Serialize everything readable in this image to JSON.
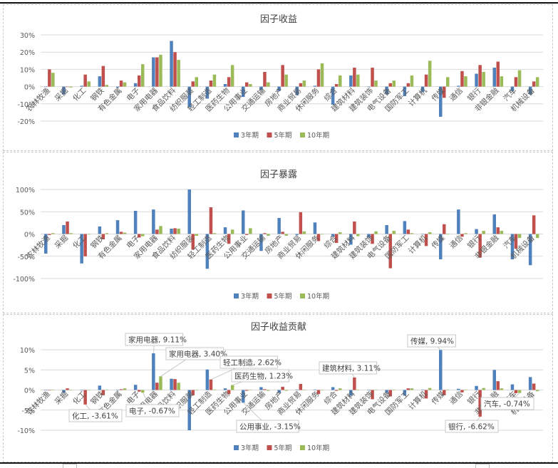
{
  "colors": {
    "s3": "#4F81BD",
    "s5": "#C0504D",
    "s10": "#9BBB59",
    "grid": "#D9D9D9",
    "text": "#595959"
  },
  "legend": [
    "3年期",
    "5年期",
    "10年期"
  ],
  "chart_data": [
    {
      "type": "bar",
      "title": "因子收益",
      "xlabel": "",
      "ylabel": "",
      "ylim": [
        -20,
        30
      ],
      "yticks": [
        "30%",
        "20%",
        "10%",
        "0%",
        "-10%",
        "-20%"
      ],
      "grid": true,
      "legend_position": "bottom",
      "categories": [
        "农林牧渔",
        "采掘",
        "化工",
        "钢铁",
        "有色金属",
        "电子",
        "家用电器",
        "食品饮料",
        "纺织服装",
        "轻工制造",
        "医药生物",
        "公用事业",
        "交通运输",
        "房地产",
        "商业贸易",
        "休闲服务",
        "综合",
        "建筑材料",
        "建筑装饰",
        "电气设备",
        "国防军工",
        "计算机",
        "传媒",
        "通信",
        "银行",
        "非银金融",
        "汽车",
        "机械设备"
      ],
      "series": [
        {
          "name": "3年期",
          "values": [
            0,
            -4.5,
            0.5,
            6,
            -0.5,
            2,
            17,
            26.5,
            -12,
            -7,
            1.5,
            -6,
            -2,
            -2.5,
            -5,
            0.5,
            -10.5,
            6.5,
            0,
            -4.5,
            -5.5,
            -3,
            -17.5,
            0.5,
            7.5,
            11,
            -2.5,
            -4.5
          ]
        },
        {
          "name": "5年期",
          "values": [
            10,
            0,
            7,
            12,
            3.5,
            6.5,
            17,
            20,
            3,
            3.5,
            5.5,
            2.5,
            8.5,
            12.5,
            2,
            10,
            1.5,
            11,
            11,
            2,
            2,
            7,
            -6.5,
            9,
            12.5,
            14.5,
            5.5,
            3
          ]
        },
        {
          "name": "10年期",
          "values": [
            8,
            -0.5,
            3,
            1,
            2.5,
            13,
            18.5,
            15.5,
            5.5,
            7,
            12.5,
            1.5,
            2.5,
            7,
            3.5,
            13.5,
            6.5,
            7,
            3.5,
            3.5,
            6.5,
            15,
            5.5,
            6,
            8.5,
            6,
            9.5,
            5.5
          ]
        }
      ]
    },
    {
      "type": "bar",
      "title": "因子暴露",
      "xlabel": "",
      "ylabel": "",
      "ylim": [
        -100,
        100
      ],
      "yticks": [
        "100%",
        "50%",
        "0%",
        "-50%",
        "-100%"
      ],
      "grid": true,
      "legend_position": "bottom",
      "categories": [
        "农林牧渔",
        "采掘",
        "化工",
        "钢铁",
        "有色金属",
        "电子",
        "家用电器",
        "食品饮料",
        "纺织服装",
        "轻工制造",
        "医药生物",
        "公用事业",
        "交通运输",
        "房地产",
        "商业贸易",
        "休闲服务",
        "综合",
        "建筑材料",
        "建筑装饰",
        "电气设备",
        "国防军工",
        "计算机",
        "传媒",
        "通信",
        "银行",
        "非银金融",
        "汽车",
        "机械设备"
      ],
      "series": [
        {
          "name": "3年期",
          "values": [
            -44,
            20,
            -66,
            17,
            31,
            52,
            55,
            12,
            100,
            -78,
            15,
            53,
            -38,
            36,
            -2,
            26,
            -5,
            -24,
            -8,
            20,
            29,
            -1,
            -57,
            55,
            11,
            44,
            -57,
            -70
          ]
        },
        {
          "name": "5年期",
          "values": [
            -2,
            28,
            -50,
            -12,
            5,
            -8,
            10,
            13,
            -35,
            60,
            -22,
            -2,
            2,
            5,
            49,
            -16,
            -20,
            28,
            -22,
            -77,
            10,
            -27,
            22,
            -6,
            -53,
            15,
            -33,
            42
          ]
        },
        {
          "name": "10年期",
          "values": [
            2,
            2,
            -1,
            2,
            3,
            -5,
            18,
            12,
            -4,
            2,
            10,
            13,
            -4,
            -4,
            6,
            -1,
            4,
            -5,
            6,
            7,
            2,
            4,
            -1,
            2,
            7,
            7,
            -9,
            -9
          ]
        }
      ]
    },
    {
      "type": "bar",
      "title": "因子收益贡献",
      "xlabel": "",
      "ylabel": "",
      "ylim": [
        -10,
        10
      ],
      "yticks": [
        "10%",
        "5%",
        "0%",
        "-5%",
        "-10%"
      ],
      "grid": true,
      "legend_position": "bottom",
      "categories": [
        "农林牧渔",
        "采掘",
        "化工",
        "钢铁",
        "有色金属",
        "电子",
        "家用电器",
        "食品饮料",
        "纺织服装",
        "轻工制造",
        "医药生物",
        "公用事业",
        "交通运输",
        "房地产",
        "商业贸易",
        "休闲服务",
        "综合",
        "建筑材料",
        "建筑装饰",
        "电气设备",
        "国防军工",
        "计算机",
        "传媒",
        "通信",
        "银行",
        "非银金融",
        "汽车",
        "机械设备"
      ],
      "series": [
        {
          "name": "3年期",
          "values": [
            0,
            -0.7,
            0,
            1.1,
            0,
            1.3,
            9.11,
            2.8,
            -10,
            5.1,
            0.4,
            -3.15,
            0.7,
            -0.7,
            0.1,
            0.1,
            0.7,
            -1.4,
            0,
            -0.7,
            -1.4,
            0.1,
            9.94,
            0.3,
            1.0,
            5.0,
            1.4,
            3.2
          ]
        },
        {
          "name": "5年期",
          "values": [
            0,
            0.4,
            -3.61,
            -1.3,
            0.2,
            -0.4,
            1.8,
            2.7,
            -1.3,
            2.62,
            -1.0,
            -0.2,
            0.2,
            0.8,
            1.5,
            -1.0,
            -0.2,
            3.11,
            -2.3,
            -1.6,
            0.4,
            -2.1,
            -1.3,
            -0.6,
            -6.62,
            2.2,
            -0.8,
            1.6
          ]
        },
        {
          "name": "10年期",
          "values": [
            0.1,
            0,
            0,
            0.1,
            0.4,
            -0.67,
            3.4,
            1.8,
            0,
            0.1,
            1.23,
            0.1,
            -0.2,
            -0.2,
            0.1,
            0,
            0.4,
            0.1,
            0.1,
            0.1,
            0.4,
            0.5,
            0.1,
            0.1,
            0.5,
            0.4,
            -0.74,
            -0.3
          ]
        }
      ],
      "annotations": [
        {
          "label": "家用电器, 9.11%",
          "cat": 6,
          "series": 0
        },
        {
          "label": "家用电器, 3.40%",
          "cat": 6,
          "series": 2
        },
        {
          "label": "轻工制造, 2.62%",
          "cat": 9,
          "series": 1
        },
        {
          "label": "医药生物, 1.23%",
          "cat": 10,
          "series": 2
        },
        {
          "label": "化工, -3.61%",
          "cat": 2,
          "series": 1
        },
        {
          "label": "电子, -0.67%",
          "cat": 5,
          "series": 2
        },
        {
          "label": "公用事业, -3.15%",
          "cat": 11,
          "series": 0
        },
        {
          "label": "建筑材料, 3.11%",
          "cat": 17,
          "series": 1
        },
        {
          "label": "传媒, 9.94%",
          "cat": 22,
          "series": 0
        },
        {
          "label": "银行, -6.62%",
          "cat": 24,
          "series": 1
        },
        {
          "label": "汽车, -0.74%",
          "cat": 26,
          "series": 2
        }
      ]
    }
  ]
}
